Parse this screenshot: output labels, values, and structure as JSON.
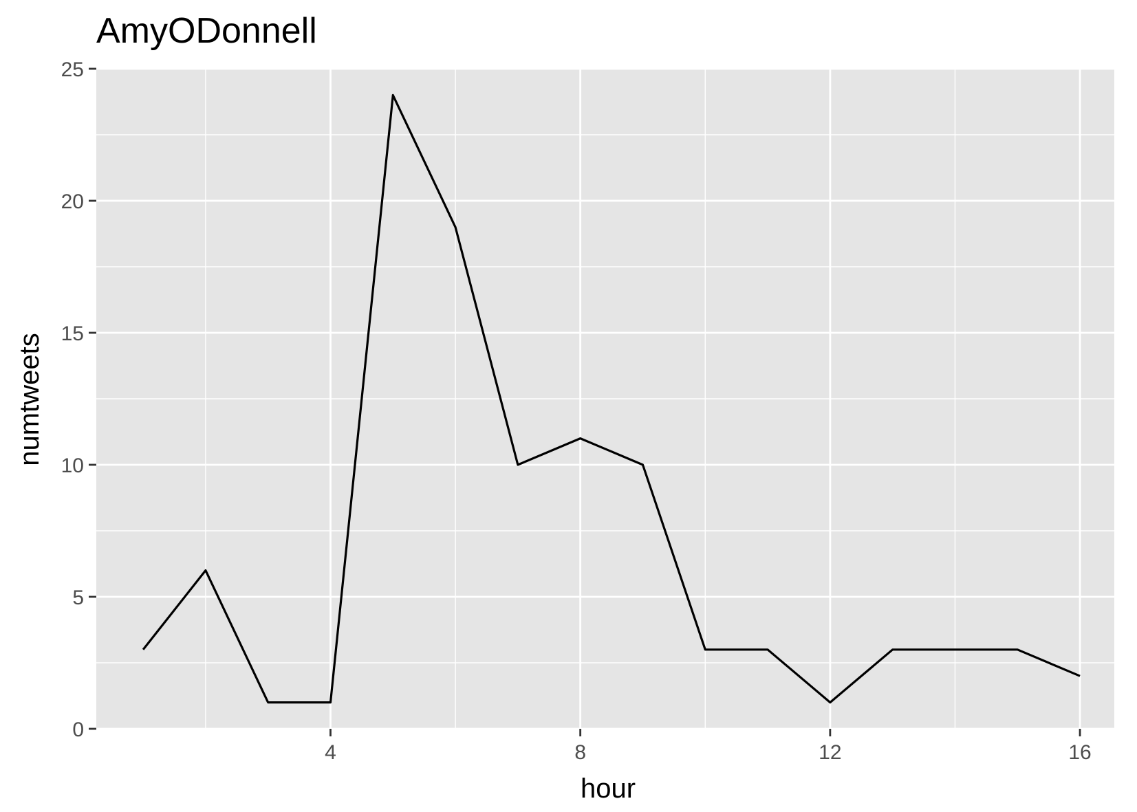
{
  "chart_data": {
    "type": "line",
    "title": "AmyODonnell",
    "xlabel": "hour",
    "ylabel": "numtweets",
    "x": [
      1,
      2,
      3,
      4,
      5,
      6,
      7,
      8,
      9,
      10,
      11,
      12,
      13,
      14,
      15,
      16
    ],
    "series": [
      {
        "values": [
          3,
          6,
          1,
          1,
          24,
          19,
          10,
          11,
          10,
          3,
          3,
          1,
          3,
          3,
          3,
          2
        ]
      }
    ],
    "xlim": [
      0.25,
      16.55
    ],
    "ylim": [
      0,
      25
    ],
    "x_ticks": [
      4,
      8,
      12,
      16
    ],
    "x_minor_ticks": [
      2,
      6,
      10,
      14
    ],
    "y_ticks": [
      0,
      5,
      10,
      15,
      20,
      25
    ],
    "y_minor_ticks": [
      2.5,
      7.5,
      12.5,
      17.5,
      22.5
    ],
    "grid": true,
    "legend": "none",
    "colors": {
      "panel_background": "#e5e5e5",
      "grid_line": "#ffffff",
      "series_line": "#000000",
      "tick_text": "#4d4d4d",
      "tick_mark": "#333333"
    }
  }
}
